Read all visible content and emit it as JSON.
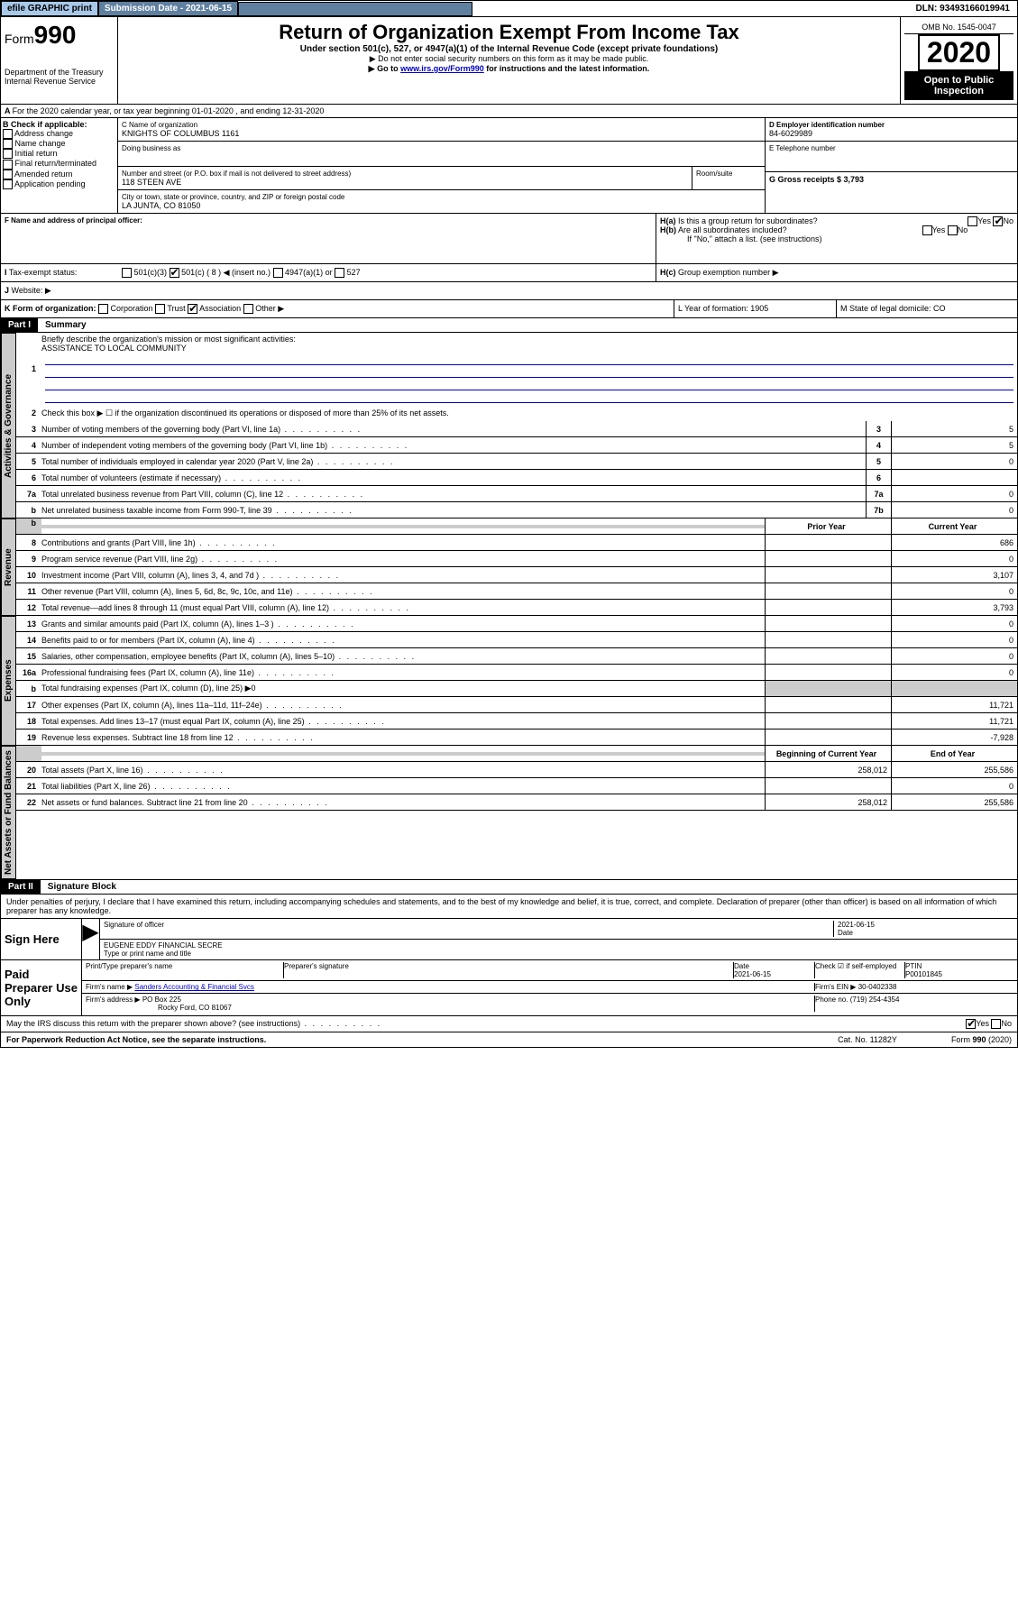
{
  "topbar": {
    "efile": "efile GRAPHIC print",
    "submission": "Submission Date - 2021-06-15",
    "dln": "DLN: 93493166019941"
  },
  "header": {
    "form_label": "Form",
    "form_num": "990",
    "dept": "Department of the Treasury",
    "irs": "Internal Revenue Service",
    "title": "Return of Organization Exempt From Income Tax",
    "sub1": "Under section 501(c), 527, or 4947(a)(1) of the Internal Revenue Code (except private foundations)",
    "sub2": "▶ Do not enter social security numbers on this form as it may be made public.",
    "sub3_pre": "▶ Go to ",
    "sub3_link": "www.irs.gov/Form990",
    "sub3_post": " for instructions and the latest information.",
    "omb": "OMB No. 1545-0047",
    "year": "2020",
    "open": "Open to Public Inspection"
  },
  "a": {
    "period": "For the 2020 calendar year, or tax year beginning 01-01-2020    , and ending 12-31-2020",
    "b_label": "B Check if applicable:",
    "b_opts": [
      "Address change",
      "Name change",
      "Initial return",
      "Final return/terminated",
      "Amended return",
      "Application pending"
    ],
    "c_label": "C Name of organization",
    "c_name": "KNIGHTS OF COLUMBUS 1161",
    "dba_label": "Doing business as",
    "addr_label": "Number and street (or P.O. box if mail is not delivered to street address)",
    "room_label": "Room/suite",
    "addr": "118 STEEN AVE",
    "city_label": "City or town, state or province, country, and ZIP or foreign postal code",
    "city": "LA JUNTA, CO  81050",
    "d_label": "D Employer identification number",
    "d_val": "84-6029989",
    "e_label": "E Telephone number",
    "g_label": "G Gross receipts $ 3,793",
    "f_label": "F  Name and address of principal officer:",
    "h_a": "Is this a group return for subordinates?",
    "h_b": "Are all subordinates included?",
    "h_b_note": "If \"No,\" attach a list. (see instructions)",
    "h_c": "Group exemption number ▶",
    "yes": "Yes",
    "no": "No",
    "i_label": "Tax-exempt status:",
    "i_opts": [
      "501(c)(3)",
      "501(c) ( 8 ) ◀ (insert no.)",
      "4947(a)(1) or",
      "527"
    ],
    "j_label": "Website: ▶",
    "k_label": "K Form of organization:",
    "k_opts": [
      "Corporation",
      "Trust",
      "Association",
      "Other ▶"
    ],
    "l_label": "L Year of formation: 1905",
    "m_label": "M State of legal domicile: CO"
  },
  "part1": {
    "hdr": "Part I",
    "title": "Summary",
    "tab_gov": "Activities & Governance",
    "tab_rev": "Revenue",
    "tab_exp": "Expenses",
    "tab_net": "Net Assets or Fund Balances",
    "l1": "Briefly describe the organization's mission or most significant activities:",
    "l1_val": "ASSISTANCE TO LOCAL COMMUNITY",
    "l2": "Check this box ▶ ☐  if the organization discontinued its operations or disposed of more than 25% of its net assets.",
    "lines": [
      {
        "n": "3",
        "t": "Number of voting members of the governing body (Part VI, line 1a)",
        "b": "3",
        "v": "5"
      },
      {
        "n": "4",
        "t": "Number of independent voting members of the governing body (Part VI, line 1b)",
        "b": "4",
        "v": "5"
      },
      {
        "n": "5",
        "t": "Total number of individuals employed in calendar year 2020 (Part V, line 2a)",
        "b": "5",
        "v": "0"
      },
      {
        "n": "6",
        "t": "Total number of volunteers (estimate if necessary)",
        "b": "6",
        "v": ""
      },
      {
        "n": "7a",
        "t": "Total unrelated business revenue from Part VIII, column (C), line 12",
        "b": "7a",
        "v": "0"
      },
      {
        "n": "b",
        "t": "Net unrelated business taxable income from Form 990-T, line 39",
        "b": "7b",
        "v": "0"
      }
    ],
    "col_prior": "Prior Year",
    "col_curr": "Current Year",
    "rev": [
      {
        "n": "8",
        "t": "Contributions and grants (Part VIII, line 1h)",
        "p": "",
        "c": "686"
      },
      {
        "n": "9",
        "t": "Program service revenue (Part VIII, line 2g)",
        "p": "",
        "c": "0"
      },
      {
        "n": "10",
        "t": "Investment income (Part VIII, column (A), lines 3, 4, and 7d )",
        "p": "",
        "c": "3,107"
      },
      {
        "n": "11",
        "t": "Other revenue (Part VIII, column (A), lines 5, 6d, 8c, 9c, 10c, and 11e)",
        "p": "",
        "c": "0"
      },
      {
        "n": "12",
        "t": "Total revenue—add lines 8 through 11 (must equal Part VIII, column (A), line 12)",
        "p": "",
        "c": "3,793"
      }
    ],
    "exp": [
      {
        "n": "13",
        "t": "Grants and similar amounts paid (Part IX, column (A), lines 1–3 )",
        "p": "",
        "c": "0"
      },
      {
        "n": "14",
        "t": "Benefits paid to or for members (Part IX, column (A), line 4)",
        "p": "",
        "c": "0"
      },
      {
        "n": "15",
        "t": "Salaries, other compensation, employee benefits (Part IX, column (A), lines 5–10)",
        "p": "",
        "c": "0"
      },
      {
        "n": "16a",
        "t": "Professional fundraising fees (Part IX, column (A), line 11e)",
        "p": "",
        "c": "0"
      },
      {
        "n": "b",
        "t": "Total fundraising expenses (Part IX, column (D), line 25) ▶0",
        "grey": true
      },
      {
        "n": "17",
        "t": "Other expenses (Part IX, column (A), lines 11a–11d, 11f–24e)",
        "p": "",
        "c": "11,721"
      },
      {
        "n": "18",
        "t": "Total expenses. Add lines 13–17 (must equal Part IX, column (A), line 25)",
        "p": "",
        "c": "11,721"
      },
      {
        "n": "19",
        "t": "Revenue less expenses. Subtract line 18 from line 12",
        "p": "",
        "c": "-7,928"
      }
    ],
    "col_beg": "Beginning of Current Year",
    "col_end": "End of Year",
    "net": [
      {
        "n": "20",
        "t": "Total assets (Part X, line 16)",
        "p": "258,012",
        "c": "255,586"
      },
      {
        "n": "21",
        "t": "Total liabilities (Part X, line 26)",
        "p": "",
        "c": "0"
      },
      {
        "n": "22",
        "t": "Net assets or fund balances. Subtract line 21 from line 20",
        "p": "258,012",
        "c": "255,586"
      }
    ]
  },
  "part2": {
    "hdr": "Part II",
    "title": "Signature Block",
    "decl": "Under penalties of perjury, I declare that I have examined this return, including accompanying schedules and statements, and to the best of my knowledge and belief, it is true, correct, and complete. Declaration of preparer (other than officer) is based on all information of which preparer has any knowledge.",
    "sign_here": "Sign Here",
    "date": "2021-06-15",
    "date_lbl": "Date",
    "sig_off": "Signature of officer",
    "officer": "EUGENE EDDY  FINANCIAL SECRE",
    "type_name": "Type or print name and title",
    "paid": "Paid Preparer Use Only",
    "pp_name_lbl": "Print/Type preparer's name",
    "pp_sig_lbl": "Preparer's signature",
    "pp_date_lbl": "Date",
    "pp_date": "2021-06-15",
    "pp_check": "Check ☑ if self-employed",
    "ptin_lbl": "PTIN",
    "ptin": "P00101845",
    "firm_name_lbl": "Firm's name    ▶",
    "firm_name": "Sanders Accounting & Financial Svcs",
    "firm_ein_lbl": "Firm's EIN ▶",
    "firm_ein": "30-0402338",
    "firm_addr_lbl": "Firm's address ▶",
    "firm_addr1": "PO Box 225",
    "firm_addr2": "Rocky Ford, CO  81067",
    "phone_lbl": "Phone no.",
    "phone": "(719) 254-4354",
    "discuss": "May the IRS discuss this return with the preparer shown above? (see instructions)",
    "pra": "For Paperwork Reduction Act Notice, see the separate instructions.",
    "cat": "Cat. No. 11282Y",
    "form_foot": "Form 990 (2020)"
  }
}
